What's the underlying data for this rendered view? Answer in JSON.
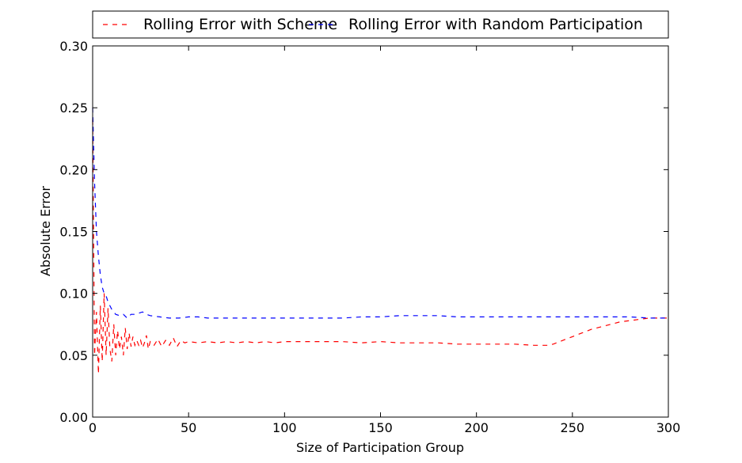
{
  "chart_data": {
    "type": "line",
    "xlabel": "Size of Participation Group",
    "ylabel": "Absolute Error",
    "xlim": [
      0,
      300
    ],
    "ylim": [
      0.0,
      0.3
    ],
    "x_ticks": [
      "0",
      "50",
      "100",
      "150",
      "200",
      "250",
      "300"
    ],
    "y_ticks": [
      "0.00",
      "0.05",
      "0.10",
      "0.15",
      "0.20",
      "0.25",
      "0.30"
    ],
    "grid": false,
    "legend_position": "top",
    "series": [
      {
        "name": "Rolling Error with Scheme",
        "color": "#ff0000",
        "style": "dashed",
        "x": [
          0,
          1,
          2,
          3,
          4,
          5,
          6,
          7,
          8,
          9,
          10,
          11,
          12,
          13,
          14,
          15,
          16,
          17,
          18,
          19,
          20,
          21,
          22,
          23,
          24,
          25,
          26,
          27,
          28,
          29,
          30,
          32,
          34,
          36,
          38,
          40,
          42,
          44,
          46,
          48,
          50,
          55,
          60,
          65,
          70,
          75,
          80,
          85,
          90,
          95,
          100,
          110,
          120,
          130,
          140,
          150,
          160,
          170,
          180,
          190,
          200,
          210,
          220,
          230,
          237,
          240,
          245,
          250,
          255,
          260,
          265,
          270,
          275,
          280,
          285,
          290,
          295,
          300
        ],
        "y": [
          0.24,
          0.05,
          0.085,
          0.035,
          0.09,
          0.045,
          0.1,
          0.05,
          0.088,
          0.055,
          0.045,
          0.075,
          0.05,
          0.07,
          0.055,
          0.065,
          0.05,
          0.072,
          0.055,
          0.068,
          0.057,
          0.065,
          0.058,
          0.062,
          0.058,
          0.062,
          0.056,
          0.06,
          0.066,
          0.055,
          0.061,
          0.058,
          0.063,
          0.057,
          0.062,
          0.058,
          0.064,
          0.057,
          0.062,
          0.06,
          0.061,
          0.06,
          0.061,
          0.06,
          0.061,
          0.06,
          0.061,
          0.06,
          0.061,
          0.06,
          0.061,
          0.061,
          0.061,
          0.061,
          0.06,
          0.061,
          0.06,
          0.06,
          0.06,
          0.059,
          0.059,
          0.059,
          0.059,
          0.058,
          0.058,
          0.059,
          0.062,
          0.065,
          0.068,
          0.071,
          0.073,
          0.075,
          0.077,
          0.078,
          0.079,
          0.08,
          0.08,
          0.08
        ]
      },
      {
        "name": "Rolling Error with Random Participation",
        "color": "#0000ff",
        "style": "dashed",
        "x": [
          0,
          1,
          2,
          3,
          4,
          5,
          6,
          7,
          8,
          10,
          12,
          14,
          16,
          18,
          20,
          22,
          24,
          26,
          28,
          30,
          35,
          40,
          45,
          50,
          55,
          60,
          70,
          80,
          90,
          100,
          110,
          120,
          130,
          140,
          150,
          160,
          165,
          170,
          180,
          190,
          200,
          210,
          220,
          230,
          240,
          250,
          260,
          270,
          280,
          290,
          300
        ],
        "y": [
          0.25,
          0.19,
          0.15,
          0.13,
          0.115,
          0.105,
          0.1,
          0.098,
          0.093,
          0.087,
          0.083,
          0.082,
          0.083,
          0.08,
          0.083,
          0.083,
          0.084,
          0.085,
          0.083,
          0.082,
          0.081,
          0.08,
          0.08,
          0.081,
          0.081,
          0.08,
          0.08,
          0.08,
          0.08,
          0.08,
          0.08,
          0.08,
          0.08,
          0.081,
          0.081,
          0.082,
          0.082,
          0.082,
          0.082,
          0.081,
          0.081,
          0.081,
          0.081,
          0.081,
          0.081,
          0.081,
          0.081,
          0.081,
          0.081,
          0.08,
          0.08
        ]
      }
    ]
  }
}
